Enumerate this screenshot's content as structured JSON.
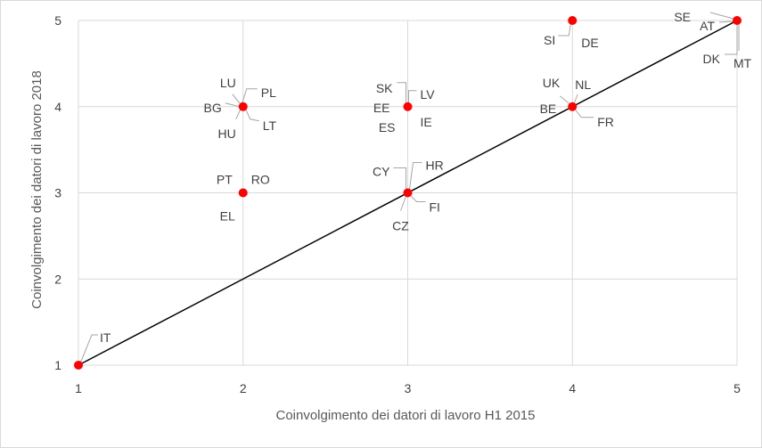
{
  "chart_data": {
    "type": "scatter",
    "title": "",
    "xlabel": "Coinvolgimento dei datori di lavoro H1 2015",
    "ylabel": "Coinvolgimento dei datori di lavoro 2018",
    "xlim": [
      1,
      5
    ],
    "ylim": [
      1,
      5
    ],
    "xticks": [
      "1",
      "2",
      "3",
      "4",
      "5"
    ],
    "yticks": [
      "1",
      "2",
      "3",
      "4",
      "5"
    ],
    "grid": true,
    "legend": "none",
    "diagonal_line": {
      "from": [
        1,
        1
      ],
      "to": [
        5,
        5
      ]
    },
    "marker_color": "#ff0000",
    "line_color": "#000000",
    "points": [
      {
        "x": 1,
        "y": 1,
        "labels": [
          "IT"
        ]
      },
      {
        "x": 2,
        "y": 3,
        "labels": [
          "PT",
          "RO",
          "EL"
        ]
      },
      {
        "x": 2,
        "y": 4,
        "labels": [
          "LU",
          "PL",
          "BG",
          "HU",
          "LT"
        ]
      },
      {
        "x": 3,
        "y": 3,
        "labels": [
          "CY",
          "HR",
          "FI",
          "CZ"
        ]
      },
      {
        "x": 3,
        "y": 4,
        "labels": [
          "SK",
          "LV",
          "EE",
          "ES",
          "IE"
        ]
      },
      {
        "x": 4,
        "y": 4,
        "labels": [
          "UK",
          "NL",
          "BE",
          "FR"
        ]
      },
      {
        "x": 4,
        "y": 5,
        "labels": [
          "SI",
          "DE"
        ]
      },
      {
        "x": 5,
        "y": 5,
        "labels": [
          "SE",
          "AT",
          "DK",
          "MT"
        ]
      }
    ]
  }
}
